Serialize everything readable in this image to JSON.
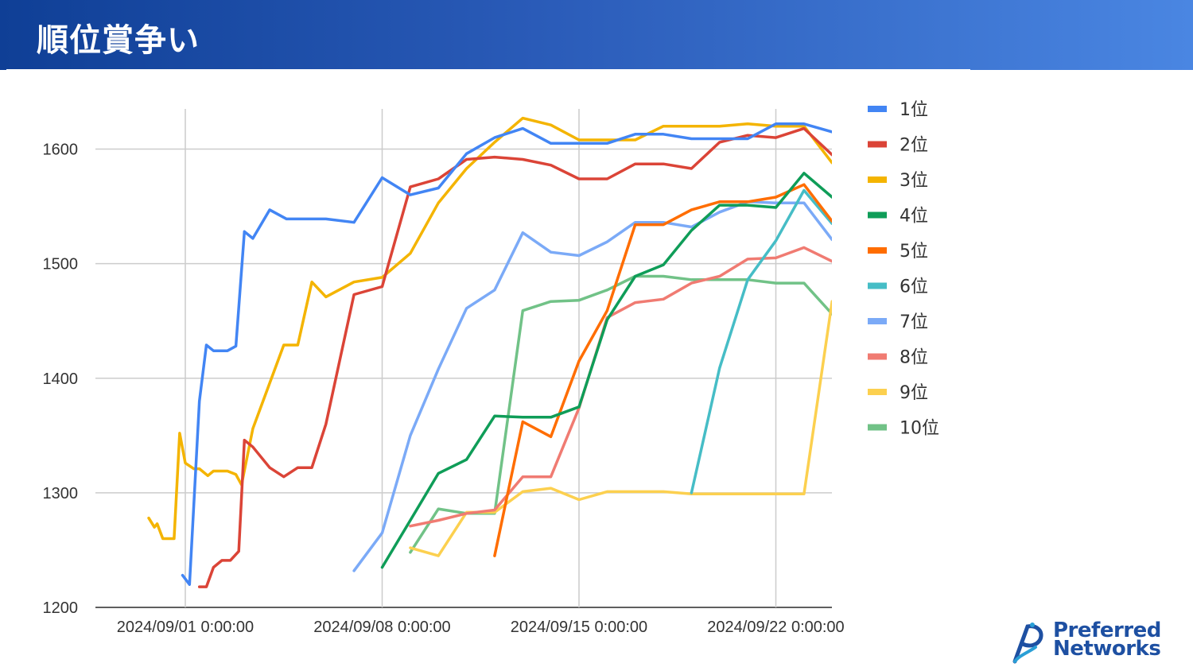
{
  "page": {
    "title": "順位賞争い"
  },
  "logo": {
    "line1": "Preferred",
    "line2": "Networks"
  },
  "colors": {
    "banner_start": "#0f3f96",
    "banner_end": "#4a86e2",
    "grid": "#cccccc"
  },
  "chart_data": {
    "type": "line",
    "title": "",
    "xlabel": "",
    "ylabel": "",
    "x_ticks": [
      "2024/09/01 0:00:00",
      "2024/09/08 0:00:00",
      "2024/09/15 0:00:00",
      "2024/09/22 0:00:00"
    ],
    "y_ticks": [
      1200,
      1300,
      1400,
      1500,
      1600
    ],
    "ylim": [
      1200,
      1640
    ],
    "xlim_days_since_2024_09_01": [
      -3.2,
      23.2
    ],
    "grid": true,
    "legend_position": "right",
    "series": [
      {
        "name": "1位",
        "color": "#4285f4",
        "points": [
          [
            -0.1,
            1228
          ],
          [
            0.15,
            1220
          ],
          [
            0.5,
            1380
          ],
          [
            0.75,
            1429
          ],
          [
            1,
            1424
          ],
          [
            1.5,
            1424
          ],
          [
            1.8,
            1428
          ],
          [
            2.1,
            1528
          ],
          [
            2.4,
            1522
          ],
          [
            3,
            1547
          ],
          [
            3.6,
            1539
          ],
          [
            5,
            1539
          ],
          [
            6,
            1536
          ],
          [
            7,
            1575
          ],
          [
            8,
            1560
          ],
          [
            9,
            1566
          ],
          [
            10,
            1596
          ],
          [
            11,
            1610
          ],
          [
            12,
            1618
          ],
          [
            13,
            1605
          ],
          [
            15,
            1605
          ],
          [
            16,
            1613
          ],
          [
            17,
            1613
          ],
          [
            18,
            1609
          ],
          [
            19,
            1609
          ],
          [
            20,
            1609
          ],
          [
            21,
            1622
          ],
          [
            22,
            1622
          ],
          [
            23,
            1615
          ]
        ]
      },
      {
        "name": "2位",
        "color": "#db4437",
        "points": [
          [
            0.5,
            1218
          ],
          [
            0.75,
            1218
          ],
          [
            1,
            1235
          ],
          [
            1.3,
            1241
          ],
          [
            1.6,
            1241
          ],
          [
            1.9,
            1249
          ],
          [
            2.1,
            1346
          ],
          [
            2.4,
            1340
          ],
          [
            3,
            1322
          ],
          [
            3.5,
            1314
          ],
          [
            4,
            1322
          ],
          [
            4.5,
            1322
          ],
          [
            5,
            1360
          ],
          [
            6,
            1473
          ],
          [
            7,
            1480
          ],
          [
            8,
            1567
          ],
          [
            9,
            1574
          ],
          [
            10,
            1591
          ],
          [
            11,
            1593
          ],
          [
            12,
            1591
          ],
          [
            13,
            1586
          ],
          [
            14,
            1574
          ],
          [
            15,
            1574
          ],
          [
            16,
            1587
          ],
          [
            17,
            1587
          ],
          [
            18,
            1583
          ],
          [
            19,
            1606
          ],
          [
            20,
            1612
          ],
          [
            21,
            1610
          ],
          [
            22,
            1618
          ],
          [
            23,
            1595
          ]
        ]
      },
      {
        "name": "3位",
        "color": "#f4b400",
        "points": [
          [
            -1.3,
            1278
          ],
          [
            -1.1,
            1270
          ],
          [
            -1,
            1273
          ],
          [
            -0.8,
            1260
          ],
          [
            -0.4,
            1260
          ],
          [
            -0.2,
            1352
          ],
          [
            0,
            1326
          ],
          [
            0.3,
            1321
          ],
          [
            0.5,
            1321
          ],
          [
            0.8,
            1315
          ],
          [
            1,
            1319
          ],
          [
            1.5,
            1319
          ],
          [
            1.8,
            1316
          ],
          [
            2,
            1307
          ],
          [
            2.4,
            1356
          ],
          [
            3.5,
            1429
          ],
          [
            4,
            1429
          ],
          [
            4.5,
            1484
          ],
          [
            5,
            1471
          ],
          [
            6,
            1484
          ],
          [
            7,
            1488
          ],
          [
            8,
            1509
          ],
          [
            9,
            1553
          ],
          [
            10,
            1583
          ],
          [
            11,
            1606
          ],
          [
            12,
            1627
          ],
          [
            13,
            1621
          ],
          [
            14,
            1608
          ],
          [
            15,
            1608
          ],
          [
            16,
            1608
          ],
          [
            17,
            1620
          ],
          [
            18,
            1620
          ],
          [
            19,
            1620
          ],
          [
            20,
            1622
          ],
          [
            21,
            1620
          ],
          [
            22,
            1620
          ],
          [
            23,
            1588
          ]
        ]
      },
      {
        "name": "4位",
        "color": "#0f9d58",
        "points": [
          [
            7,
            1235
          ],
          [
            8,
            1276
          ],
          [
            9,
            1317
          ],
          [
            10,
            1329
          ],
          [
            11,
            1367
          ],
          [
            12,
            1366
          ],
          [
            13,
            1366
          ],
          [
            14,
            1375
          ],
          [
            15,
            1451
          ],
          [
            16,
            1489
          ],
          [
            17,
            1499
          ],
          [
            18,
            1529
          ],
          [
            19,
            1551
          ],
          [
            20,
            1551
          ],
          [
            21,
            1549
          ],
          [
            22,
            1579
          ],
          [
            23,
            1558
          ]
        ]
      },
      {
        "name": "5位",
        "color": "#ff6d00",
        "points": [
          [
            11,
            1245
          ],
          [
            12,
            1362
          ],
          [
            13,
            1349
          ],
          [
            14,
            1415
          ],
          [
            15,
            1459
          ],
          [
            16,
            1534
          ],
          [
            17,
            1534
          ],
          [
            18,
            1547
          ],
          [
            19,
            1554
          ],
          [
            20,
            1554
          ],
          [
            21,
            1558
          ],
          [
            22,
            1569
          ],
          [
            23,
            1537
          ]
        ]
      },
      {
        "name": "6位",
        "color": "#46bdc6",
        "points": [
          [
            18,
            1300
          ],
          [
            19,
            1409
          ],
          [
            20,
            1486
          ],
          [
            21,
            1520
          ],
          [
            22,
            1564
          ],
          [
            23,
            1535
          ]
        ]
      },
      {
        "name": "7位",
        "color": "#7baaf7",
        "points": [
          [
            6,
            1232
          ],
          [
            7,
            1265
          ],
          [
            8,
            1350
          ],
          [
            9,
            1408
          ],
          [
            10,
            1461
          ],
          [
            11,
            1477
          ],
          [
            12,
            1527
          ],
          [
            13,
            1510
          ],
          [
            14,
            1507
          ],
          [
            15,
            1519
          ],
          [
            16,
            1536
          ],
          [
            17,
            1536
          ],
          [
            18,
            1532
          ],
          [
            19,
            1545
          ],
          [
            20,
            1554
          ],
          [
            21,
            1553
          ],
          [
            22,
            1553
          ],
          [
            23,
            1521
          ]
        ]
      },
      {
        "name": "8位",
        "color": "#f07b72",
        "points": [
          [
            8,
            1271
          ],
          [
            9,
            1276
          ],
          [
            10,
            1282
          ],
          [
            11,
            1285
          ],
          [
            12,
            1314
          ],
          [
            13,
            1314
          ],
          [
            14,
            1374
          ],
          [
            15,
            1453
          ],
          [
            16,
            1466
          ],
          [
            17,
            1469
          ],
          [
            18,
            1483
          ],
          [
            19,
            1489
          ],
          [
            20,
            1504
          ],
          [
            21,
            1505
          ],
          [
            22,
            1514
          ],
          [
            23,
            1502
          ]
        ]
      },
      {
        "name": "9位",
        "color": "#fcd04f",
        "points": [
          [
            8,
            1252
          ],
          [
            9,
            1245
          ],
          [
            10,
            1283
          ],
          [
            11,
            1283
          ],
          [
            12,
            1301
          ],
          [
            13,
            1304
          ],
          [
            14,
            1294
          ],
          [
            15,
            1301
          ],
          [
            16,
            1301
          ],
          [
            17,
            1301
          ],
          [
            18,
            1299
          ],
          [
            19,
            1299
          ],
          [
            20,
            1299
          ],
          [
            21,
            1299
          ],
          [
            22,
            1299
          ],
          [
            23,
            1467
          ]
        ]
      },
      {
        "name": "10位",
        "color": "#71c287",
        "points": [
          [
            8,
            1248
          ],
          [
            9,
            1286
          ],
          [
            10,
            1282
          ],
          [
            11,
            1282
          ],
          [
            12,
            1459
          ],
          [
            13,
            1467
          ],
          [
            14,
            1468
          ],
          [
            15,
            1477
          ],
          [
            16,
            1489
          ],
          [
            17,
            1489
          ],
          [
            18,
            1486
          ],
          [
            19,
            1486
          ],
          [
            20,
            1486
          ],
          [
            21,
            1483
          ],
          [
            22,
            1483
          ],
          [
            23,
            1456
          ]
        ]
      }
    ]
  }
}
